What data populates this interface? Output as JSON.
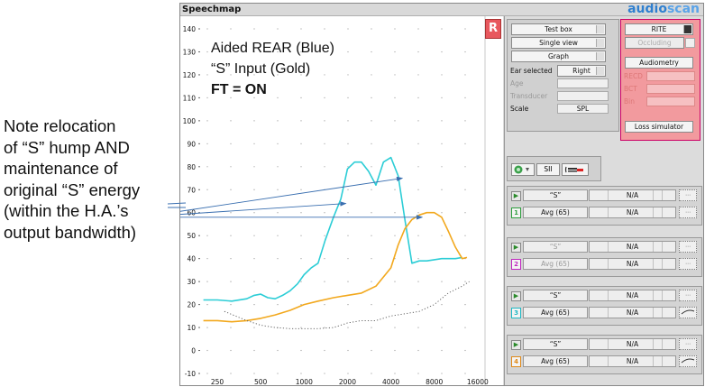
{
  "annotation": {
    "lines": [
      "Note relocation",
      "of “S” hump AND",
      "maintenance of",
      "original “S” energy",
      "(within the H.A.’s",
      "output bandwidth)"
    ]
  },
  "app": {
    "title": "Speechmap",
    "brand_a": "audio",
    "brand_b": "scan"
  },
  "overlay": {
    "line1": "Aided REAR (Blue)",
    "line2": "“S” Input (Gold)",
    "line3": "FT = ON"
  },
  "ear_button": "R",
  "controls": {
    "test_box": "Test box",
    "single_view": "Single view",
    "graph": "Graph",
    "ear_selected_label": "Ear selected",
    "ear_selected_value": "Right",
    "age_label": "Age",
    "transducer_label": "Transducer",
    "scale_label": "Scale",
    "scale_value": "SPL"
  },
  "red_panel": {
    "style_value": "RITE",
    "occluding": "Occluding",
    "audiometry": "Audiometry",
    "reco": "RECD",
    "bct": "BCT",
    "bin": "Bin",
    "loss_simulator": "Loss simulator"
  },
  "toolbar": {
    "sii": "SII"
  },
  "tests": [
    {
      "stim": "“S”",
      "stim_na": "N/A",
      "num": "1",
      "level": "Avg (65)",
      "level_na": "N/A",
      "color": "#2e9e3e",
      "dim": false
    },
    {
      "stim": "“S”",
      "stim_na": "N/A",
      "num": "2",
      "level": "Avg (65)",
      "level_na": "N/A",
      "color": "#c026c0",
      "dim": true
    },
    {
      "stim": "“S”",
      "stim_na": "N/A",
      "num": "3",
      "level": "Avg (65)",
      "level_na": "N/A",
      "color": "#1fb8c4",
      "dim": false
    },
    {
      "stim": "“S”",
      "stim_na": "N/A",
      "num": "4",
      "level": "Avg (65)",
      "level_na": "N/A",
      "color": "#e08a1a",
      "dim": false
    }
  ],
  "colors": {
    "aided": "#2ccdd6",
    "input": "#f2a81d",
    "threshold": "#555555",
    "arrow": "#3a6fb0"
  },
  "chart_data": {
    "type": "line",
    "x_scale": "log",
    "x_ticks": [
      "250",
      "500",
      "1000",
      "2000",
      "4000",
      "8000",
      "16000"
    ],
    "x_tick_values": [
      250,
      500,
      1000,
      2000,
      4000,
      8000,
      16000
    ],
    "y_ticks": [
      "140",
      "130",
      "120",
      "110",
      "100",
      "90",
      "80",
      "70",
      "60",
      "50",
      "40",
      "30",
      "20",
      "10",
      "0",
      "-10"
    ],
    "ylim": [
      -10,
      140
    ],
    "xlim": [
      190,
      18000
    ],
    "grid": "dotted",
    "series": [
      {
        "key": "aided",
        "x": [
          200,
          250,
          315,
          400,
          450,
          500,
          560,
          630,
          710,
          800,
          900,
          1000,
          1120,
          1250,
          1400,
          1600,
          1800,
          2000,
          2240,
          2500,
          2800,
          3150,
          3550,
          4000,
          4500,
          5000,
          5600,
          6300,
          7100,
          8000,
          9000,
          10000,
          11200,
          12500
        ],
        "y": [
          22,
          22,
          21.5,
          22.5,
          24,
          24.5,
          23,
          22.5,
          24,
          26,
          29,
          33,
          36,
          38,
          48,
          58,
          66,
          79,
          82,
          82,
          78,
          72,
          82,
          84,
          76,
          57,
          38,
          39,
          39,
          39.5,
          40,
          40,
          40,
          40.5
        ]
      },
      {
        "key": "input",
        "x": [
          200,
          250,
          315,
          400,
          500,
          630,
          800,
          1000,
          1250,
          1600,
          2000,
          2500,
          3150,
          4000,
          4500,
          5000,
          5600,
          6300,
          7100,
          8000,
          9000,
          10000,
          11200,
          12500,
          13500
        ],
        "y": [
          13,
          13,
          12.5,
          13,
          14,
          15.5,
          17.5,
          20,
          21.5,
          23,
          24,
          25,
          28,
          36,
          46,
          53,
          57,
          59,
          60,
          60,
          58,
          52,
          45,
          40,
          40.5
        ]
      },
      {
        "key": "threshold",
        "x": [
          280,
          400,
          500,
          630,
          800,
          1000,
          1250,
          1600,
          2000,
          2500,
          3150,
          4000,
          5000,
          6300,
          8000,
          10000,
          12500,
          14000
        ],
        "y": [
          17,
          13,
          11,
          10,
          9.5,
          9.5,
          9.5,
          10,
          12,
          13,
          13,
          15,
          16,
          17,
          20,
          25,
          28,
          30
        ]
      }
    ],
    "arrows": [
      {
        "x1": 45,
        "y1": 59,
        "x2": 1950,
        "y2": 64
      },
      {
        "x1": 45,
        "y1": 60,
        "x2": 4800,
        "y2": 75
      },
      {
        "x1": 45,
        "y1": 58,
        "x2": 6600,
        "y2": 58
      }
    ]
  }
}
